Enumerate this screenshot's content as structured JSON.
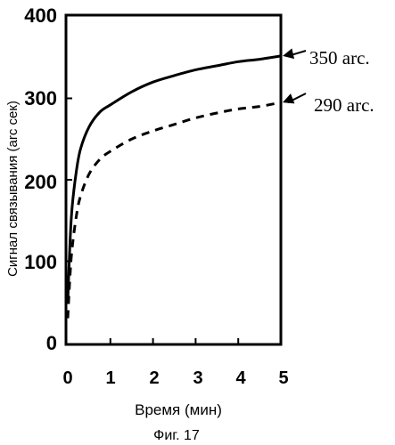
{
  "chart_data": {
    "type": "line",
    "xlabel": "Время (мин)",
    "ylabel": "Сигнал связывания (arc сек)",
    "xlim": [
      0,
      5
    ],
    "ylim": [
      0,
      400
    ],
    "x_ticks": [
      "0",
      "1",
      "2",
      "3",
      "4",
      "5"
    ],
    "y_ticks": [
      "0",
      "100",
      "200",
      "300",
      "400"
    ],
    "grid": false,
    "series": [
      {
        "style": "solid",
        "x": [
          0,
          0.05,
          0.1,
          0.2,
          0.3,
          0.5,
          0.75,
          1,
          1.5,
          2,
          2.5,
          3,
          3.5,
          4,
          4.5,
          5
        ],
        "y": [
          50,
          120,
          165,
          210,
          238,
          265,
          283,
          292,
          308,
          320,
          328,
          335,
          340,
          345,
          348,
          352
        ]
      },
      {
        "style": "dashed",
        "x": [
          0,
          0.05,
          0.1,
          0.2,
          0.3,
          0.5,
          0.75,
          1,
          1.5,
          2,
          2.5,
          3,
          3.5,
          4,
          4.5,
          5
        ],
        "y": [
          30,
          80,
          115,
          155,
          180,
          207,
          225,
          235,
          250,
          260,
          268,
          276,
          282,
          287,
          290,
          295
        ]
      }
    ],
    "annotations": [
      {
        "text": "350 arc.",
        "target_x": 5,
        "target_y": 352
      },
      {
        "text": "290 arc.",
        "target_x": 5,
        "target_y": 295
      }
    ]
  },
  "caption": "Фиг. 17"
}
